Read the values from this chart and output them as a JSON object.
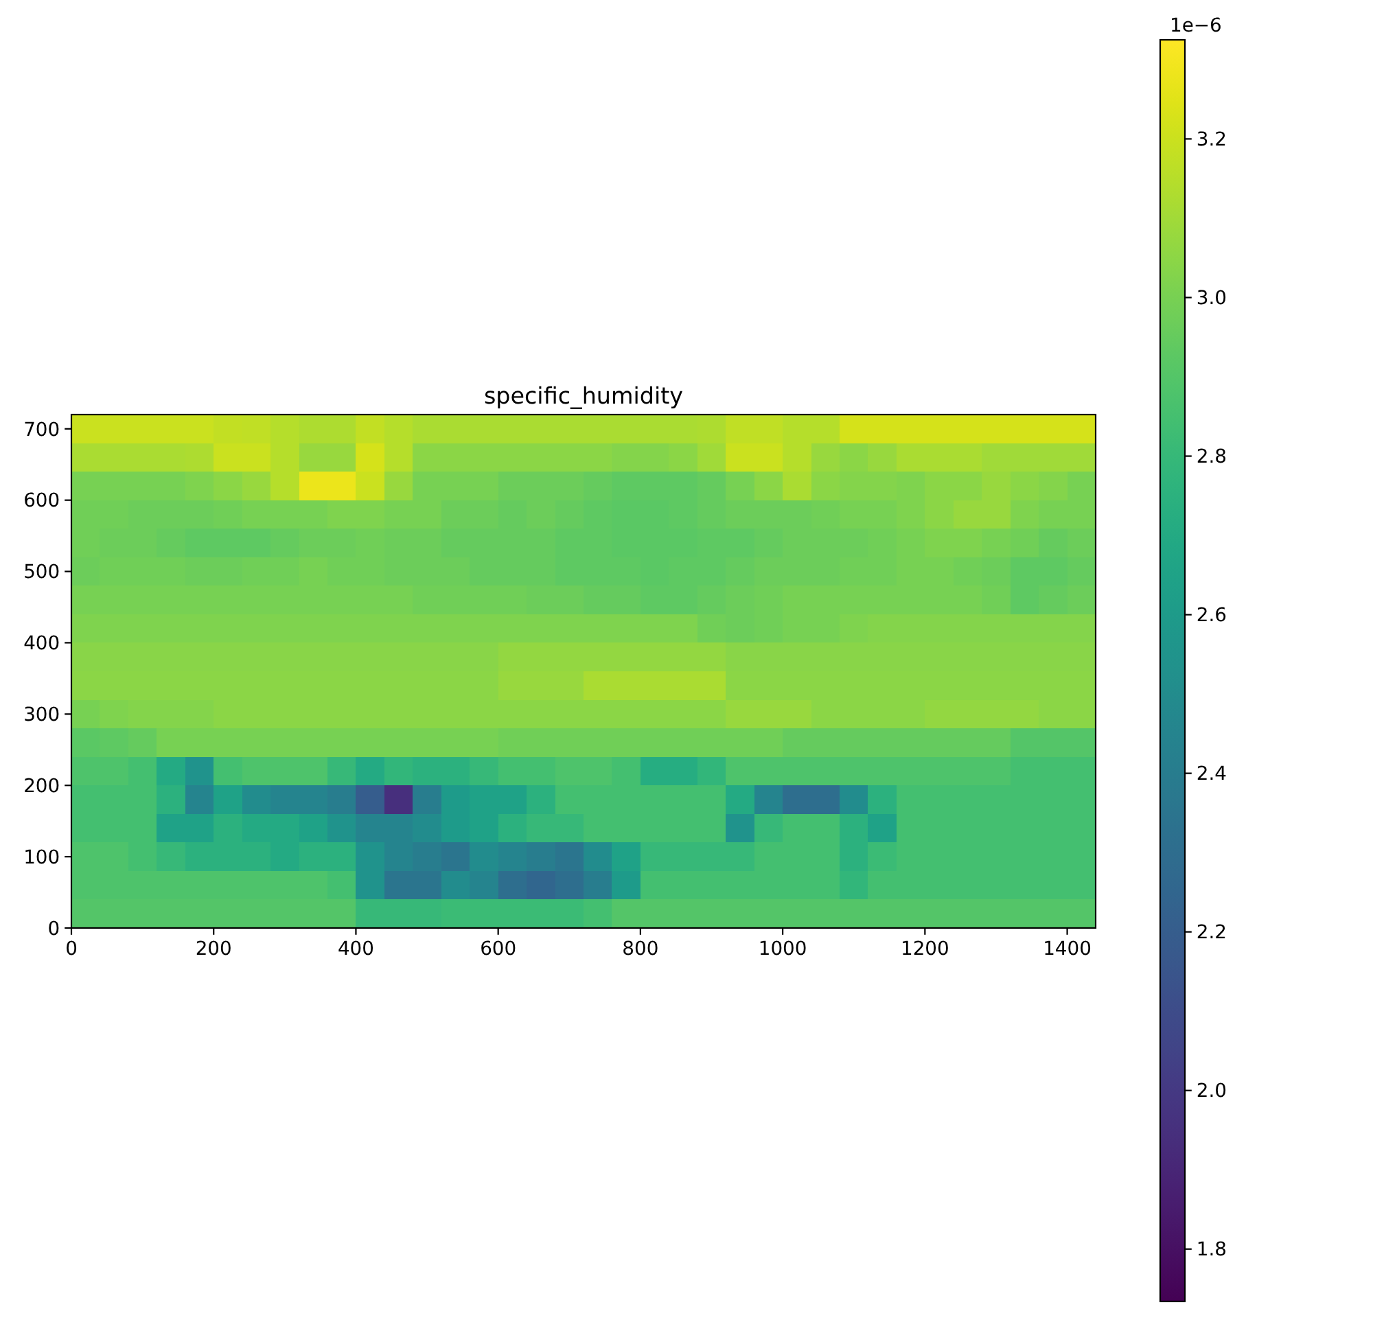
{
  "chart_data": {
    "type": "heatmap",
    "title": "specific_humidity",
    "x": [
      20,
      60,
      100,
      140,
      180,
      220,
      260,
      300,
      340,
      380,
      420,
      460,
      500,
      540,
      580,
      620,
      660,
      700,
      740,
      780,
      820,
      860,
      900,
      940,
      980,
      1020,
      1060,
      1100,
      1140,
      1180,
      1220,
      1260,
      1300,
      1340,
      1380,
      1420
    ],
    "xlim": [
      0,
      1440
    ],
    "xticks": [
      0,
      200,
      400,
      600,
      800,
      1000,
      1200,
      1400
    ],
    "ylim": [
      0,
      720
    ],
    "yticks": [
      0,
      100,
      200,
      300,
      400,
      500,
      600,
      700
    ],
    "clim": [
      1.734,
      3.325
    ],
    "cticks": [
      1.8,
      {
        "value": 2,
        "label": "2.0"
      },
      2.2,
      2.4,
      2.6,
      2.8,
      {
        "value": 3,
        "label": "3.0"
      },
      3.2
    ],
    "clabel": "1e−6",
    "cells": [
      [
        3.2,
        3.2,
        3.2,
        3.2,
        3.2,
        3.18,
        3.17,
        3.15,
        3.13,
        3.13,
        3.18,
        3.15,
        3.12,
        3.12,
        3.12,
        3.12,
        3.12,
        3.12,
        3.12,
        3.12,
        3.12,
        3.12,
        3.13,
        3.17,
        3.17,
        3.15,
        3.15,
        3.22,
        3.22,
        3.22,
        3.22,
        3.22,
        3.22,
        3.22,
        3.22,
        3.22
      ],
      [
        3.12,
        3.12,
        3.12,
        3.12,
        3.13,
        3.2,
        3.2,
        3.15,
        3.08,
        3.08,
        3.22,
        3.15,
        3.05,
        3.05,
        3.05,
        3.05,
        3.05,
        3.05,
        3.05,
        3.03,
        3.03,
        3.05,
        3.1,
        3.2,
        3.2,
        3.15,
        3.08,
        3.05,
        3.08,
        3.12,
        3.12,
        3.12,
        3.1,
        3.1,
        3.1,
        3.1
      ],
      [
        3.0,
        3.0,
        3.0,
        3.0,
        3.02,
        3.05,
        3.08,
        3.15,
        3.28,
        3.28,
        3.2,
        3.08,
        3.0,
        3.0,
        3.0,
        2.97,
        2.97,
        2.97,
        2.95,
        2.93,
        2.93,
        2.93,
        2.95,
        3.0,
        3.05,
        3.12,
        3.05,
        3.03,
        3.03,
        3.02,
        3.05,
        3.05,
        3.08,
        3.05,
        3.03,
        3.0
      ],
      [
        2.98,
        2.98,
        2.97,
        2.97,
        2.97,
        2.98,
        3.0,
        3.0,
        3.0,
        3.02,
        3.02,
        3.0,
        3.0,
        2.97,
        2.97,
        2.95,
        2.97,
        2.95,
        2.93,
        2.92,
        2.92,
        2.93,
        2.95,
        2.97,
        2.97,
        2.97,
        2.98,
        3.0,
        3.0,
        3.02,
        3.05,
        3.08,
        3.08,
        3.02,
        3.0,
        3.0
      ],
      [
        2.98,
        2.97,
        2.97,
        2.95,
        2.93,
        2.93,
        2.93,
        2.95,
        2.97,
        2.97,
        2.98,
        2.97,
        2.97,
        2.95,
        2.95,
        2.95,
        2.95,
        2.93,
        2.93,
        2.92,
        2.92,
        2.92,
        2.93,
        2.93,
        2.95,
        2.97,
        2.97,
        2.97,
        2.98,
        3.0,
        3.02,
        3.02,
        3.0,
        2.98,
        2.95,
        2.97
      ],
      [
        2.97,
        2.98,
        2.98,
        2.98,
        2.97,
        2.97,
        2.98,
        2.98,
        3.0,
        2.98,
        2.98,
        2.97,
        2.97,
        2.97,
        2.95,
        2.95,
        2.95,
        2.93,
        2.93,
        2.93,
        2.92,
        2.93,
        2.93,
        2.95,
        2.97,
        2.97,
        2.97,
        2.98,
        2.98,
        3.0,
        3.0,
        2.98,
        2.97,
        2.93,
        2.93,
        2.95
      ],
      [
        3.0,
        3.0,
        3.0,
        3.0,
        3.0,
        3.0,
        3.0,
        3.0,
        3.0,
        3.0,
        3.0,
        3.0,
        2.98,
        2.98,
        2.98,
        2.98,
        2.97,
        2.97,
        2.95,
        2.95,
        2.93,
        2.93,
        2.95,
        2.97,
        2.98,
        3.0,
        3.0,
        3.0,
        3.0,
        3.0,
        3.0,
        3.0,
        2.98,
        2.93,
        2.95,
        2.97
      ],
      [
        3.02,
        3.02,
        3.02,
        3.02,
        3.02,
        3.02,
        3.02,
        3.02,
        3.02,
        3.02,
        3.02,
        3.02,
        3.02,
        3.02,
        3.02,
        3.02,
        3.02,
        3.02,
        3.02,
        3.02,
        3.02,
        3.02,
        2.98,
        2.97,
        2.98,
        3.0,
        3.0,
        3.02,
        3.03,
        3.03,
        3.03,
        3.03,
        3.03,
        3.03,
        3.03,
        3.03
      ],
      [
        3.04,
        3.04,
        3.04,
        3.04,
        3.04,
        3.04,
        3.04,
        3.04,
        3.04,
        3.04,
        3.04,
        3.04,
        3.04,
        3.04,
        3.04,
        3.07,
        3.07,
        3.07,
        3.07,
        3.07,
        3.07,
        3.07,
        3.07,
        3.04,
        3.04,
        3.04,
        3.04,
        3.04,
        3.04,
        3.04,
        3.04,
        3.04,
        3.04,
        3.04,
        3.04,
        3.04
      ],
      [
        3.05,
        3.05,
        3.05,
        3.05,
        3.05,
        3.05,
        3.05,
        3.05,
        3.05,
        3.05,
        3.05,
        3.05,
        3.05,
        3.05,
        3.05,
        3.08,
        3.08,
        3.08,
        3.12,
        3.12,
        3.12,
        3.12,
        3.12,
        3.05,
        3.05,
        3.05,
        3.05,
        3.05,
        3.05,
        3.05,
        3.05,
        3.05,
        3.05,
        3.05,
        3.05,
        3.05
      ],
      [
        3.0,
        3.02,
        3.03,
        3.03,
        3.03,
        3.05,
        3.05,
        3.05,
        3.05,
        3.05,
        3.05,
        3.05,
        3.05,
        3.05,
        3.05,
        3.05,
        3.05,
        3.05,
        3.05,
        3.05,
        3.05,
        3.05,
        3.05,
        3.08,
        3.08,
        3.08,
        3.05,
        3.05,
        3.05,
        3.05,
        3.07,
        3.07,
        3.07,
        3.07,
        3.05,
        3.05
      ],
      [
        2.92,
        2.93,
        2.95,
        3.0,
        3.0,
        3.0,
        3.0,
        3.0,
        3.0,
        3.0,
        3.0,
        3.0,
        3.0,
        3.0,
        3.0,
        2.98,
        2.98,
        2.98,
        2.98,
        2.98,
        2.98,
        2.98,
        2.98,
        2.98,
        2.98,
        2.95,
        2.95,
        2.95,
        2.95,
        2.95,
        2.95,
        2.95,
        2.95,
        2.9,
        2.9,
        2.9
      ],
      [
        2.88,
        2.88,
        2.85,
        2.7,
        2.55,
        2.85,
        2.88,
        2.88,
        2.88,
        2.8,
        2.7,
        2.78,
        2.75,
        2.75,
        2.8,
        2.85,
        2.85,
        2.88,
        2.88,
        2.85,
        2.72,
        2.72,
        2.78,
        2.88,
        2.88,
        2.88,
        2.88,
        2.88,
        2.88,
        2.88,
        2.88,
        2.88,
        2.88,
        2.85,
        2.85,
        2.85
      ],
      [
        2.85,
        2.85,
        2.85,
        2.75,
        2.45,
        2.65,
        2.5,
        2.45,
        2.45,
        2.4,
        2.2,
        1.95,
        2.4,
        2.6,
        2.65,
        2.65,
        2.75,
        2.85,
        2.85,
        2.85,
        2.85,
        2.85,
        2.85,
        2.7,
        2.45,
        2.3,
        2.3,
        2.5,
        2.75,
        2.85,
        2.85,
        2.85,
        2.85,
        2.85,
        2.85,
        2.85
      ],
      [
        2.85,
        2.85,
        2.85,
        2.65,
        2.65,
        2.75,
        2.7,
        2.7,
        2.65,
        2.55,
        2.45,
        2.45,
        2.5,
        2.6,
        2.65,
        2.75,
        2.8,
        2.8,
        2.85,
        2.85,
        2.85,
        2.85,
        2.85,
        2.55,
        2.8,
        2.85,
        2.85,
        2.75,
        2.65,
        2.85,
        2.85,
        2.85,
        2.85,
        2.85,
        2.85,
        2.85
      ],
      [
        2.88,
        2.88,
        2.85,
        2.8,
        2.75,
        2.75,
        2.75,
        2.7,
        2.75,
        2.75,
        2.55,
        2.45,
        2.4,
        2.35,
        2.5,
        2.45,
        2.4,
        2.35,
        2.5,
        2.65,
        2.8,
        2.8,
        2.8,
        2.8,
        2.85,
        2.85,
        2.85,
        2.75,
        2.82,
        2.85,
        2.85,
        2.85,
        2.85,
        2.85,
        2.85,
        2.85
      ],
      [
        2.88,
        2.88,
        2.88,
        2.88,
        2.88,
        2.88,
        2.88,
        2.88,
        2.88,
        2.85,
        2.55,
        2.35,
        2.35,
        2.5,
        2.45,
        2.3,
        2.25,
        2.3,
        2.4,
        2.6,
        2.85,
        2.85,
        2.85,
        2.85,
        2.85,
        2.85,
        2.85,
        2.78,
        2.85,
        2.85,
        2.85,
        2.85,
        2.85,
        2.85,
        2.85,
        2.85
      ],
      [
        2.9,
        2.9,
        2.9,
        2.9,
        2.9,
        2.9,
        2.9,
        2.9,
        2.9,
        2.9,
        2.8,
        2.8,
        2.8,
        2.82,
        2.82,
        2.82,
        2.82,
        2.82,
        2.85,
        2.9,
        2.9,
        2.9,
        2.9,
        2.9,
        2.9,
        2.9,
        2.9,
        2.9,
        2.9,
        2.9,
        2.9,
        2.9,
        2.9,
        2.9,
        2.9,
        2.9
      ]
    ]
  }
}
